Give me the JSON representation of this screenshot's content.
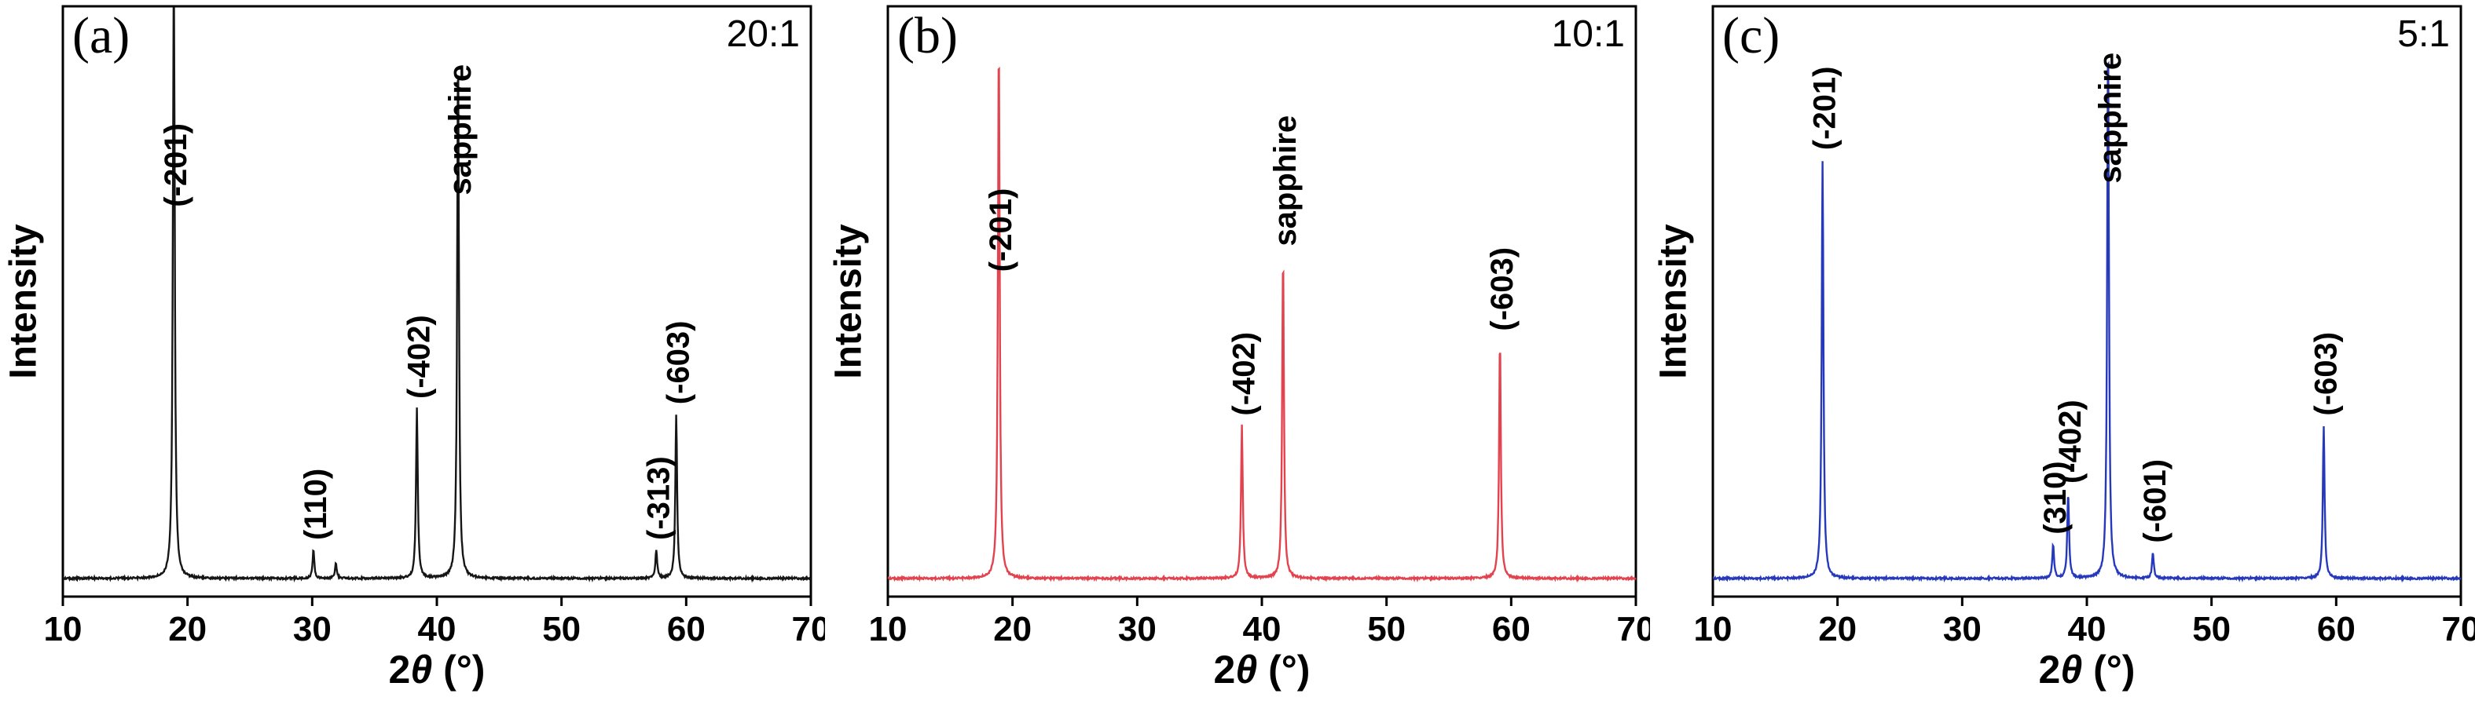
{
  "figure": {
    "background": "#ffffff",
    "description_note": "Three XRD patterns (intensity vs 2-theta) for growth ratios 20:1, 10:1, 5:1"
  },
  "chart_data": [
    {
      "type": "line",
      "panel_label": "(a)",
      "ratio_label": "20:1",
      "color": "#161616",
      "ylabel": "Intensity",
      "xlabel": "2θ (°)",
      "xlabel_parts": {
        "prefix": "2",
        "theta": "θ",
        "suffix": " (°)"
      },
      "xlim": [
        10,
        70
      ],
      "xticks": [
        10,
        20,
        30,
        40,
        50,
        60,
        70
      ],
      "y_axis_note": "arbitrary units, no y ticks",
      "legend": "none",
      "grid": "off",
      "peaks": [
        {
          "x": 18.9,
          "height": 1.15,
          "label": "(-201)",
          "label_frac": 0.34
        },
        {
          "x": 30.1,
          "height": 0.05,
          "label": "(110)"
        },
        {
          "x": 31.9,
          "height": 0.028,
          "label": ""
        },
        {
          "x": 38.4,
          "height": 0.3,
          "label": "(-402)"
        },
        {
          "x": 41.7,
          "height": 0.93,
          "label": "sapphire",
          "label_frac": 0.32
        },
        {
          "x": 57.6,
          "height": 0.05,
          "label": "(-313)"
        },
        {
          "x": 59.2,
          "height": 0.29,
          "label": "(-603)"
        }
      ]
    },
    {
      "type": "line",
      "panel_label": "(b)",
      "ratio_label": "10:1",
      "color": "#e2434e",
      "ylabel": "Intensity",
      "xlabel": "2θ (°)",
      "xlabel_parts": {
        "prefix": "2",
        "theta": "θ",
        "suffix": " (°)"
      },
      "xlim": [
        10,
        70
      ],
      "xticks": [
        10,
        20,
        30,
        40,
        50,
        60,
        70
      ],
      "y_axis_note": "arbitrary units, no y ticks",
      "legend": "none",
      "grid": "off",
      "peaks": [
        {
          "x": 18.9,
          "height": 0.95,
          "label": "(-201)",
          "label_frac": 0.45
        },
        {
          "x": 38.4,
          "height": 0.27,
          "label": "(-402)"
        },
        {
          "x": 41.7,
          "height": 0.57,
          "label": "sapphire"
        },
        {
          "x": 59.1,
          "height": 0.42,
          "label": "(-603)"
        }
      ]
    },
    {
      "type": "line",
      "panel_label": "(c)",
      "ratio_label": "5:1",
      "color": "#2739bb",
      "ylabel": "Intensity",
      "xlabel": "2θ (°)",
      "xlabel_parts": {
        "prefix": "2",
        "theta": "θ",
        "suffix": " (°)"
      },
      "xlim": [
        10,
        70
      ],
      "xticks": [
        10,
        20,
        30,
        40,
        50,
        60,
        70
      ],
      "y_axis_note": "arbitrary units, no y ticks",
      "legend": "none",
      "grid": "off",
      "peaks": [
        {
          "x": 18.8,
          "height": 0.74,
          "label": "(-201)"
        },
        {
          "x": 37.3,
          "height": 0.06,
          "label": "(310)"
        },
        {
          "x": 38.5,
          "height": 0.15,
          "label": "(-402)"
        },
        {
          "x": 41.7,
          "height": 0.96,
          "label": "sapphire",
          "label_frac": 0.3
        },
        {
          "x": 45.3,
          "height": 0.045,
          "label": "(-601)"
        },
        {
          "x": 59.0,
          "height": 0.27,
          "label": "(-603)"
        }
      ]
    }
  ]
}
